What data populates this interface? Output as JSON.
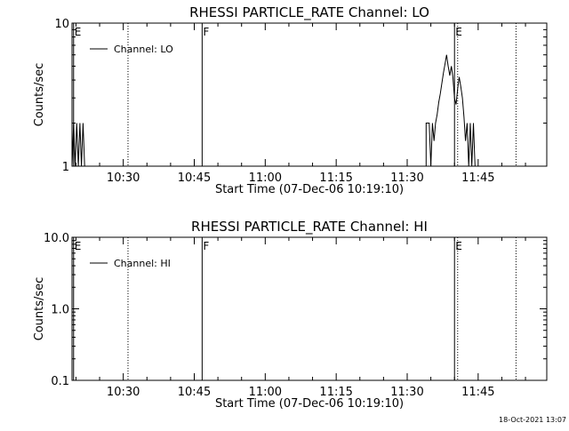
{
  "timestamp": "18-Oct-2021 13:07",
  "chart_data": [
    {
      "type": "line",
      "title": "RHESSI PARTICLE_RATE Channel: LO",
      "xlabel": "Start Time (07-Dec-06 10:19:10)",
      "ylabel": "Counts/sec",
      "yscale": "log",
      "xlim": [
        "10:19:10",
        "11:59:30"
      ],
      "ylim": [
        1,
        10
      ],
      "xticks": [
        "10:30",
        "10:45",
        "11:00",
        "11:15",
        "11:30",
        "11:45"
      ],
      "yticks": [
        {
          "value": 1,
          "label": "1"
        },
        {
          "value": 10,
          "label": "10"
        }
      ],
      "legend": {
        "entry": "Channel: LO",
        "placement": "top-left"
      },
      "event_markers": [
        {
          "time": "10:19:30",
          "label": "E",
          "style": "solid"
        },
        {
          "time": "10:31:00",
          "label": "",
          "style": "dotted"
        },
        {
          "time": "10:46:40",
          "label": "F",
          "style": "solid"
        },
        {
          "time": "11:40:00",
          "label": "E",
          "style": "solid"
        },
        {
          "time": "11:40:40",
          "label": "",
          "style": "dotted"
        },
        {
          "time": "11:53:00",
          "label": "",
          "style": "dotted"
        }
      ],
      "series": [
        {
          "name": "Channel: LO",
          "points": [
            [
              "10:19:10",
              1
            ],
            [
              "10:19:30",
              2
            ],
            [
              "10:19:50",
              1
            ],
            [
              "10:20:10",
              2
            ],
            [
              "10:20:30",
              1
            ],
            [
              "10:20:50",
              2
            ],
            [
              "10:21:10",
              1
            ],
            [
              "10:21:30",
              2
            ],
            [
              "10:21:50",
              1
            ],
            [
              "11:34:00",
              1
            ],
            [
              "11:34:00",
              2
            ],
            [
              "11:34:40",
              2
            ],
            [
              "11:35:00",
              1
            ],
            [
              "11:35:20",
              2
            ],
            [
              "11:35:40",
              1.5
            ],
            [
              "11:36:00",
              2
            ],
            [
              "11:36:20",
              2.3
            ],
            [
              "11:36:40",
              2.8
            ],
            [
              "11:37:00",
              3.2
            ],
            [
              "11:37:20",
              3.8
            ],
            [
              "11:37:40",
              4.5
            ],
            [
              "11:38:00",
              5.2
            ],
            [
              "11:38:20",
              6.0
            ],
            [
              "11:38:40",
              5.0
            ],
            [
              "11:39:00",
              4.3
            ],
            [
              "11:39:20",
              5.0
            ],
            [
              "11:39:40",
              4.2
            ],
            [
              "11:40:00",
              3.0
            ],
            [
              "11:40:20",
              2.7
            ],
            [
              "11:40:40",
              3.5
            ],
            [
              "11:41:00",
              4.2
            ],
            [
              "11:41:20",
              3.6
            ],
            [
              "11:41:40",
              3.0
            ],
            [
              "11:42:00",
              2.2
            ],
            [
              "11:42:20",
              1.5
            ],
            [
              "11:42:40",
              2
            ],
            [
              "11:43:00",
              1
            ],
            [
              "11:43:20",
              2
            ],
            [
              "11:43:40",
              1
            ],
            [
              "11:44:00",
              2
            ],
            [
              "11:44:20",
              1
            ]
          ]
        }
      ]
    },
    {
      "type": "line",
      "title": "RHESSI PARTICLE_RATE Channel: HI",
      "xlabel": "Start Time (07-Dec-06 10:19:10)",
      "ylabel": "Counts/sec",
      "yscale": "log",
      "xlim": [
        "10:19:10",
        "11:59:30"
      ],
      "ylim": [
        0.1,
        10
      ],
      "xticks": [
        "10:30",
        "10:45",
        "11:00",
        "11:15",
        "11:30",
        "11:45"
      ],
      "yticks": [
        {
          "value": 10,
          "label": "10.0"
        },
        {
          "value": 1,
          "label": "1.0"
        },
        {
          "value": 0.1,
          "label": "0.1"
        }
      ],
      "legend": {
        "entry": "Channel: HI",
        "placement": "top-left"
      },
      "event_markers": [
        {
          "time": "10:19:30",
          "label": "E",
          "style": "solid"
        },
        {
          "time": "10:31:00",
          "label": "",
          "style": "dotted"
        },
        {
          "time": "10:46:40",
          "label": "F",
          "style": "solid"
        },
        {
          "time": "11:40:00",
          "label": "E",
          "style": "solid"
        },
        {
          "time": "11:40:40",
          "label": "",
          "style": "dotted"
        },
        {
          "time": "11:53:00",
          "label": "",
          "style": "dotted"
        }
      ],
      "series": [
        {
          "name": "Channel: HI",
          "points": []
        }
      ]
    }
  ]
}
